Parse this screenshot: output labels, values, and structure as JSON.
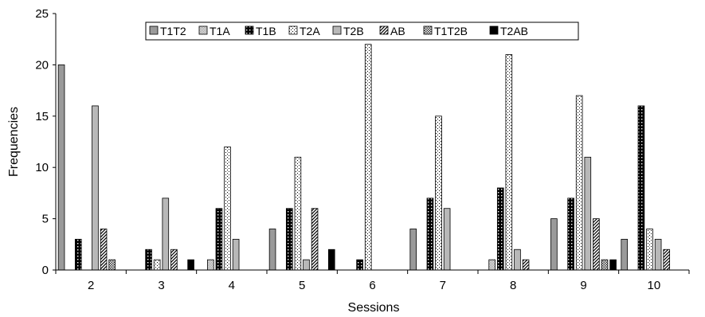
{
  "chart_data": {
    "type": "bar",
    "xlabel": "Sessions",
    "ylabel": "Frequencies",
    "ylim": [
      0,
      25
    ],
    "yticks": [
      0,
      5,
      10,
      15,
      20,
      25
    ],
    "categories": [
      "2",
      "3",
      "4",
      "5",
      "6",
      "7",
      "8",
      "9",
      "10"
    ],
    "legend_position": "top",
    "series": [
      {
        "name": "T1T2",
        "pattern": "solid-gray",
        "color": "#9a9a9a",
        "values": [
          20,
          0,
          0,
          4,
          0,
          4,
          0,
          5,
          3
        ]
      },
      {
        "name": "T1A",
        "pattern": "fine-dots",
        "color": "#c8c8c8",
        "values": [
          0,
          0,
          1,
          0,
          0,
          0,
          1,
          0,
          0
        ]
      },
      {
        "name": "T1B",
        "pattern": "black-dots",
        "color": "#000000",
        "values": [
          3,
          2,
          6,
          6,
          1,
          7,
          8,
          7,
          16
        ]
      },
      {
        "name": "T2A",
        "pattern": "sparse-dots",
        "color": "#ffffff",
        "values": [
          0,
          1,
          12,
          11,
          22,
          15,
          21,
          17,
          4
        ]
      },
      {
        "name": "T2B",
        "pattern": "light-gray",
        "color": "#b8b8b8",
        "values": [
          16,
          7,
          3,
          1,
          0,
          6,
          2,
          11,
          3
        ]
      },
      {
        "name": "AB",
        "pattern": "diagonal",
        "color": "#000000",
        "values": [
          4,
          2,
          0,
          6,
          0,
          0,
          1,
          5,
          2
        ]
      },
      {
        "name": "T1T2B",
        "pattern": "checker",
        "color": "#555555",
        "values": [
          1,
          0,
          0,
          0,
          0,
          0,
          0,
          1,
          0
        ]
      },
      {
        "name": "T2AB",
        "pattern": "solid-black",
        "color": "#000000",
        "values": [
          0,
          1,
          0,
          2,
          0,
          0,
          0,
          1,
          0
        ]
      }
    ]
  }
}
